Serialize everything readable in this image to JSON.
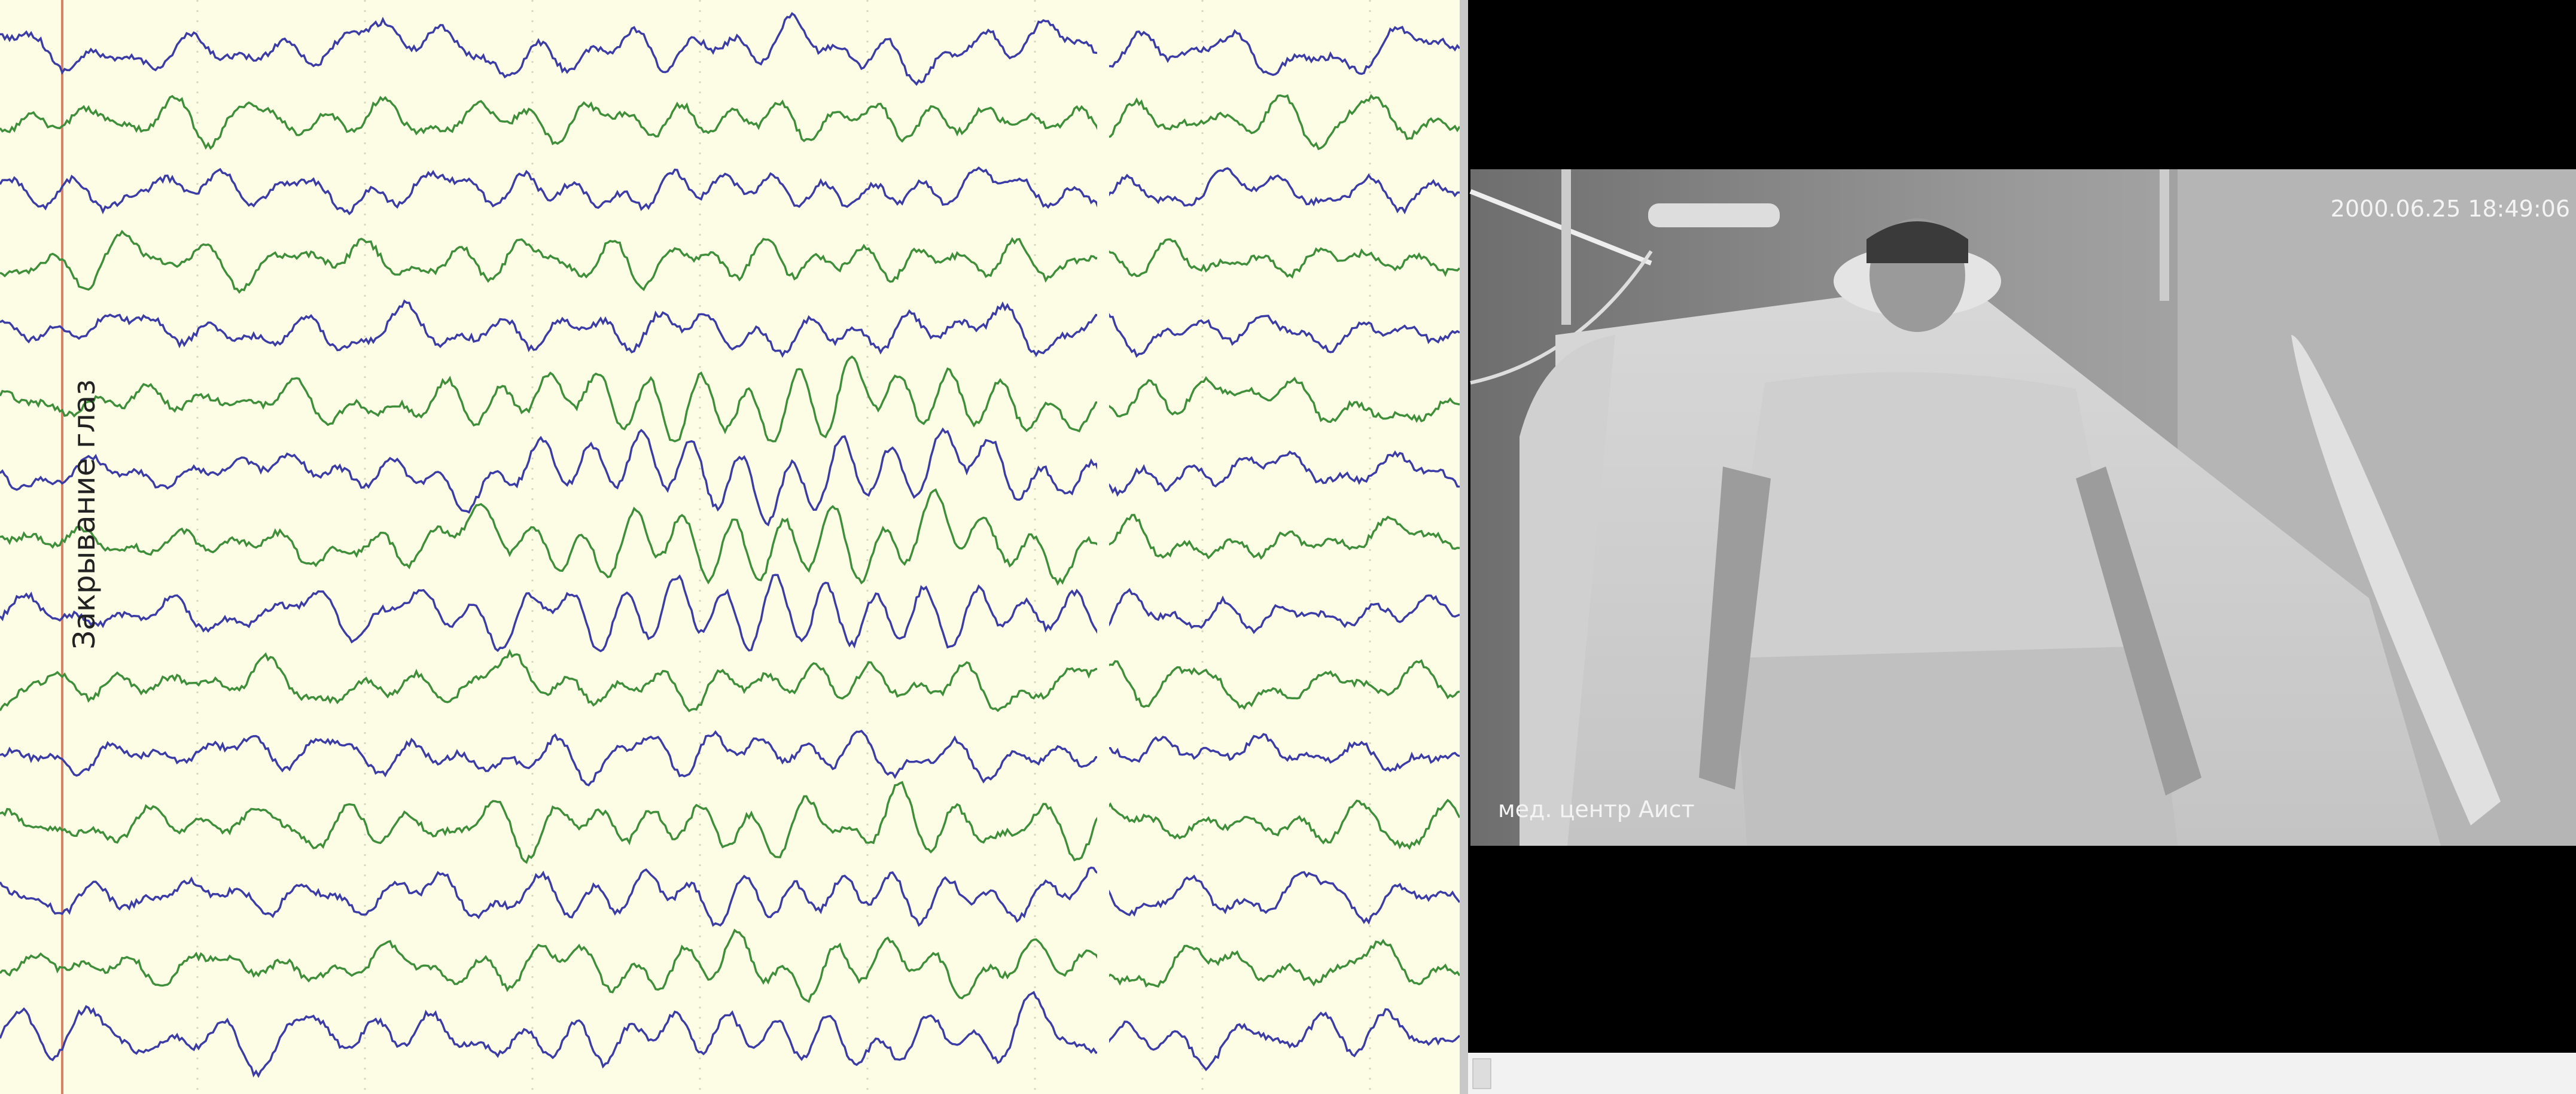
{
  "eeg": {
    "annotation": "Закрывание глаз"
  },
  "video": {
    "timestamp": "2000.06.25 18:49:06",
    "watermark": "мед. центр Аист"
  }
}
